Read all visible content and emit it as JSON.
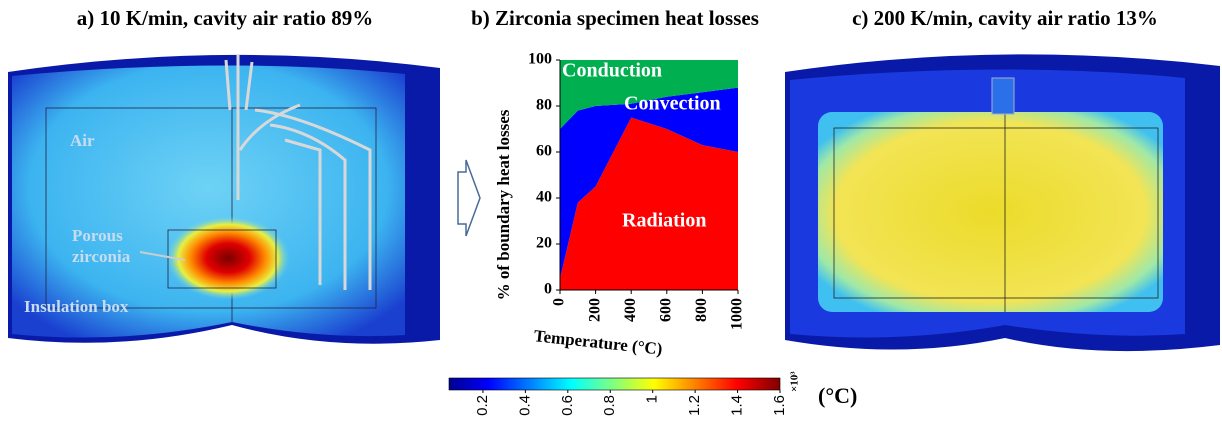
{
  "panels": {
    "a": {
      "title": "a) 10 K/min, cavity air ratio 89%",
      "air": "Air",
      "specimen": [
        "Porous",
        "zirconia"
      ],
      "box": "Insulation box"
    },
    "c": {
      "title": "c) 200 K/min, cavity air ratio 13%"
    }
  },
  "colorbar": {
    "lim": [
      0.04,
      1.6
    ],
    "ticks": [
      0.2,
      0.4,
      0.6,
      0.8,
      1,
      1.2,
      1.4,
      1.6
    ],
    "multiplier": "×10³",
    "unit": "(°C)"
  },
  "chart_data": {
    "type": "stacked-area",
    "title": "b) Zirconia specimen heat losses",
    "x_label": "Temperature (°C)",
    "y_label": "% of boundary heat losses",
    "x": [
      0,
      100,
      200,
      400,
      600,
      800,
      1000
    ],
    "series": [
      {
        "name": "Radiation",
        "color": "#ff0000",
        "values": [
          5,
          38,
          45,
          75,
          70,
          63,
          60
        ]
      },
      {
        "name": "Convection",
        "color": "#0000ff",
        "values": [
          65,
          40,
          35,
          6,
          14,
          23,
          28
        ]
      },
      {
        "name": "Conduction",
        "color": "#00b050",
        "values": [
          30,
          22,
          20,
          19,
          16,
          14,
          12
        ]
      }
    ],
    "xlim": [
      0,
      1000
    ],
    "ylim": [
      0,
      100
    ],
    "xticks": [
      0,
      200,
      400,
      600,
      800,
      1000
    ],
    "yticks": [
      0,
      20,
      40,
      60,
      80,
      100
    ]
  }
}
